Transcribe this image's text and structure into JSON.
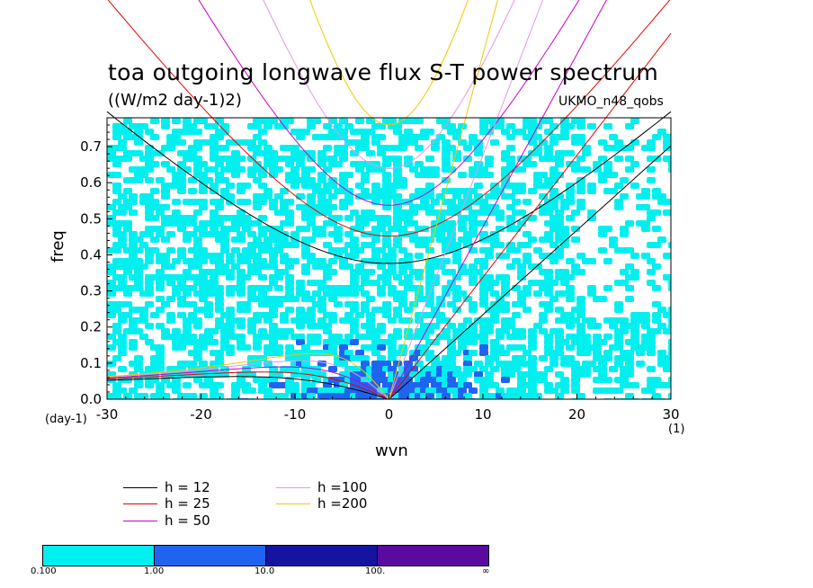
{
  "chart_data": {
    "type": "heatmap",
    "title": "toa outgoing longwave flux S-T power spectrum",
    "subtitle": "((W/m2 day-1)2)",
    "annotation": "UKMO_n48_qobs",
    "xlabel": "wvn",
    "ylabel": "freq",
    "x_unit": "(1)",
    "y_unit": "(day-1)",
    "xlim": [
      -30,
      30
    ],
    "ylim": [
      0,
      0.78
    ],
    "x_ticks": [
      "-30",
      "-20",
      "-10",
      "0",
      "10",
      "20",
      "30"
    ],
    "y_ticks": [
      "0.0",
      "0.1",
      "0.2",
      "0.3",
      "0.4",
      "0.5",
      "0.6",
      "0.7"
    ],
    "colorbar": {
      "levels": [
        "0.100",
        "1.00",
        "10.0",
        "100.",
        "∞"
      ],
      "colors": [
        "#00f0f0",
        "#1e64f0",
        "#1414a0",
        "#1e0096",
        "#5a0aa0"
      ]
    },
    "dispersion_curves": [
      {
        "name": "h = 12",
        "h": 12,
        "color": "#000000"
      },
      {
        "name": "h = 25",
        "h": 25,
        "color": "#e60000"
      },
      {
        "name": "h = 50",
        "h": 50,
        "color": "#c800c8"
      },
      {
        "name": "h =100",
        "h": 100,
        "color": "#e696e6"
      },
      {
        "name": "h =200",
        "h": 200,
        "color": "#f0c800"
      }
    ],
    "contour_summary": {
      "background_level": "0.100",
      "enhanced_region": {
        "wvn_range": [
          -10,
          10
        ],
        "freq_range": [
          0,
          0.2
        ],
        "level": "1.00"
      }
    }
  }
}
